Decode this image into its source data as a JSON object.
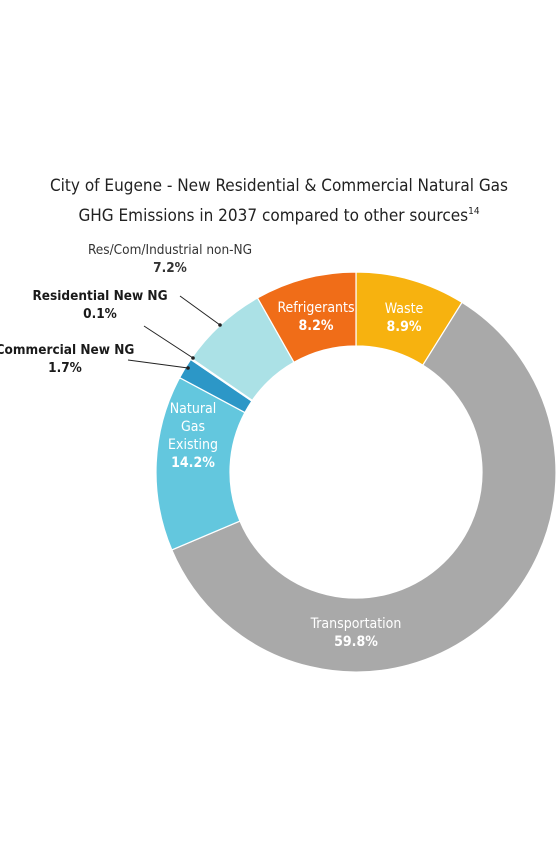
{
  "chart_data": {
    "type": "pie",
    "title": "City of Eugene - New Residential & Commercial Natural Gas",
    "title_line2": "GHG Emissions in 2037 compared to other sources",
    "title_footnote": "14",
    "donut": true,
    "slices": [
      {
        "label": "Waste",
        "value": 8.9,
        "value_label": "8.9%",
        "color": "#f7b20f",
        "label_inside": true,
        "text_color": "#ffffff"
      },
      {
        "label": "Transportation",
        "value": 59.8,
        "value_label": "59.8%",
        "color": "#a9a9a9",
        "label_inside": true,
        "text_color": "#ffffff"
      },
      {
        "label": "Natural Gas Existing",
        "label_lines": [
          "Natural",
          "Gas",
          "Existing"
        ],
        "value": 14.2,
        "value_label": "14.2%",
        "color": "#63c7de",
        "label_inside": true,
        "text_color": "#ffffff"
      },
      {
        "label": "Commercial New NG",
        "value": 1.7,
        "value_label": "1.7%",
        "color": "#2c97c7",
        "label_inside": false,
        "bold": true,
        "text_color": "#1a1a1a"
      },
      {
        "label": "Residential New NG",
        "value": 0.1,
        "value_label": "0.1%",
        "color": "#1d6fa0",
        "label_inside": false,
        "bold": true,
        "text_color": "#1a1a1a"
      },
      {
        "label": "Res/Com/Industrial non-NG",
        "value": 7.2,
        "value_label": "7.2%",
        "color": "#abe1e6",
        "label_inside": false,
        "bold": false,
        "text_color": "#333333"
      },
      {
        "label": "Refrigerants",
        "value": 8.2,
        "value_label": "8.2%",
        "color": "#f06d18",
        "label_inside": true,
        "text_color": "#ffffff"
      }
    ]
  }
}
